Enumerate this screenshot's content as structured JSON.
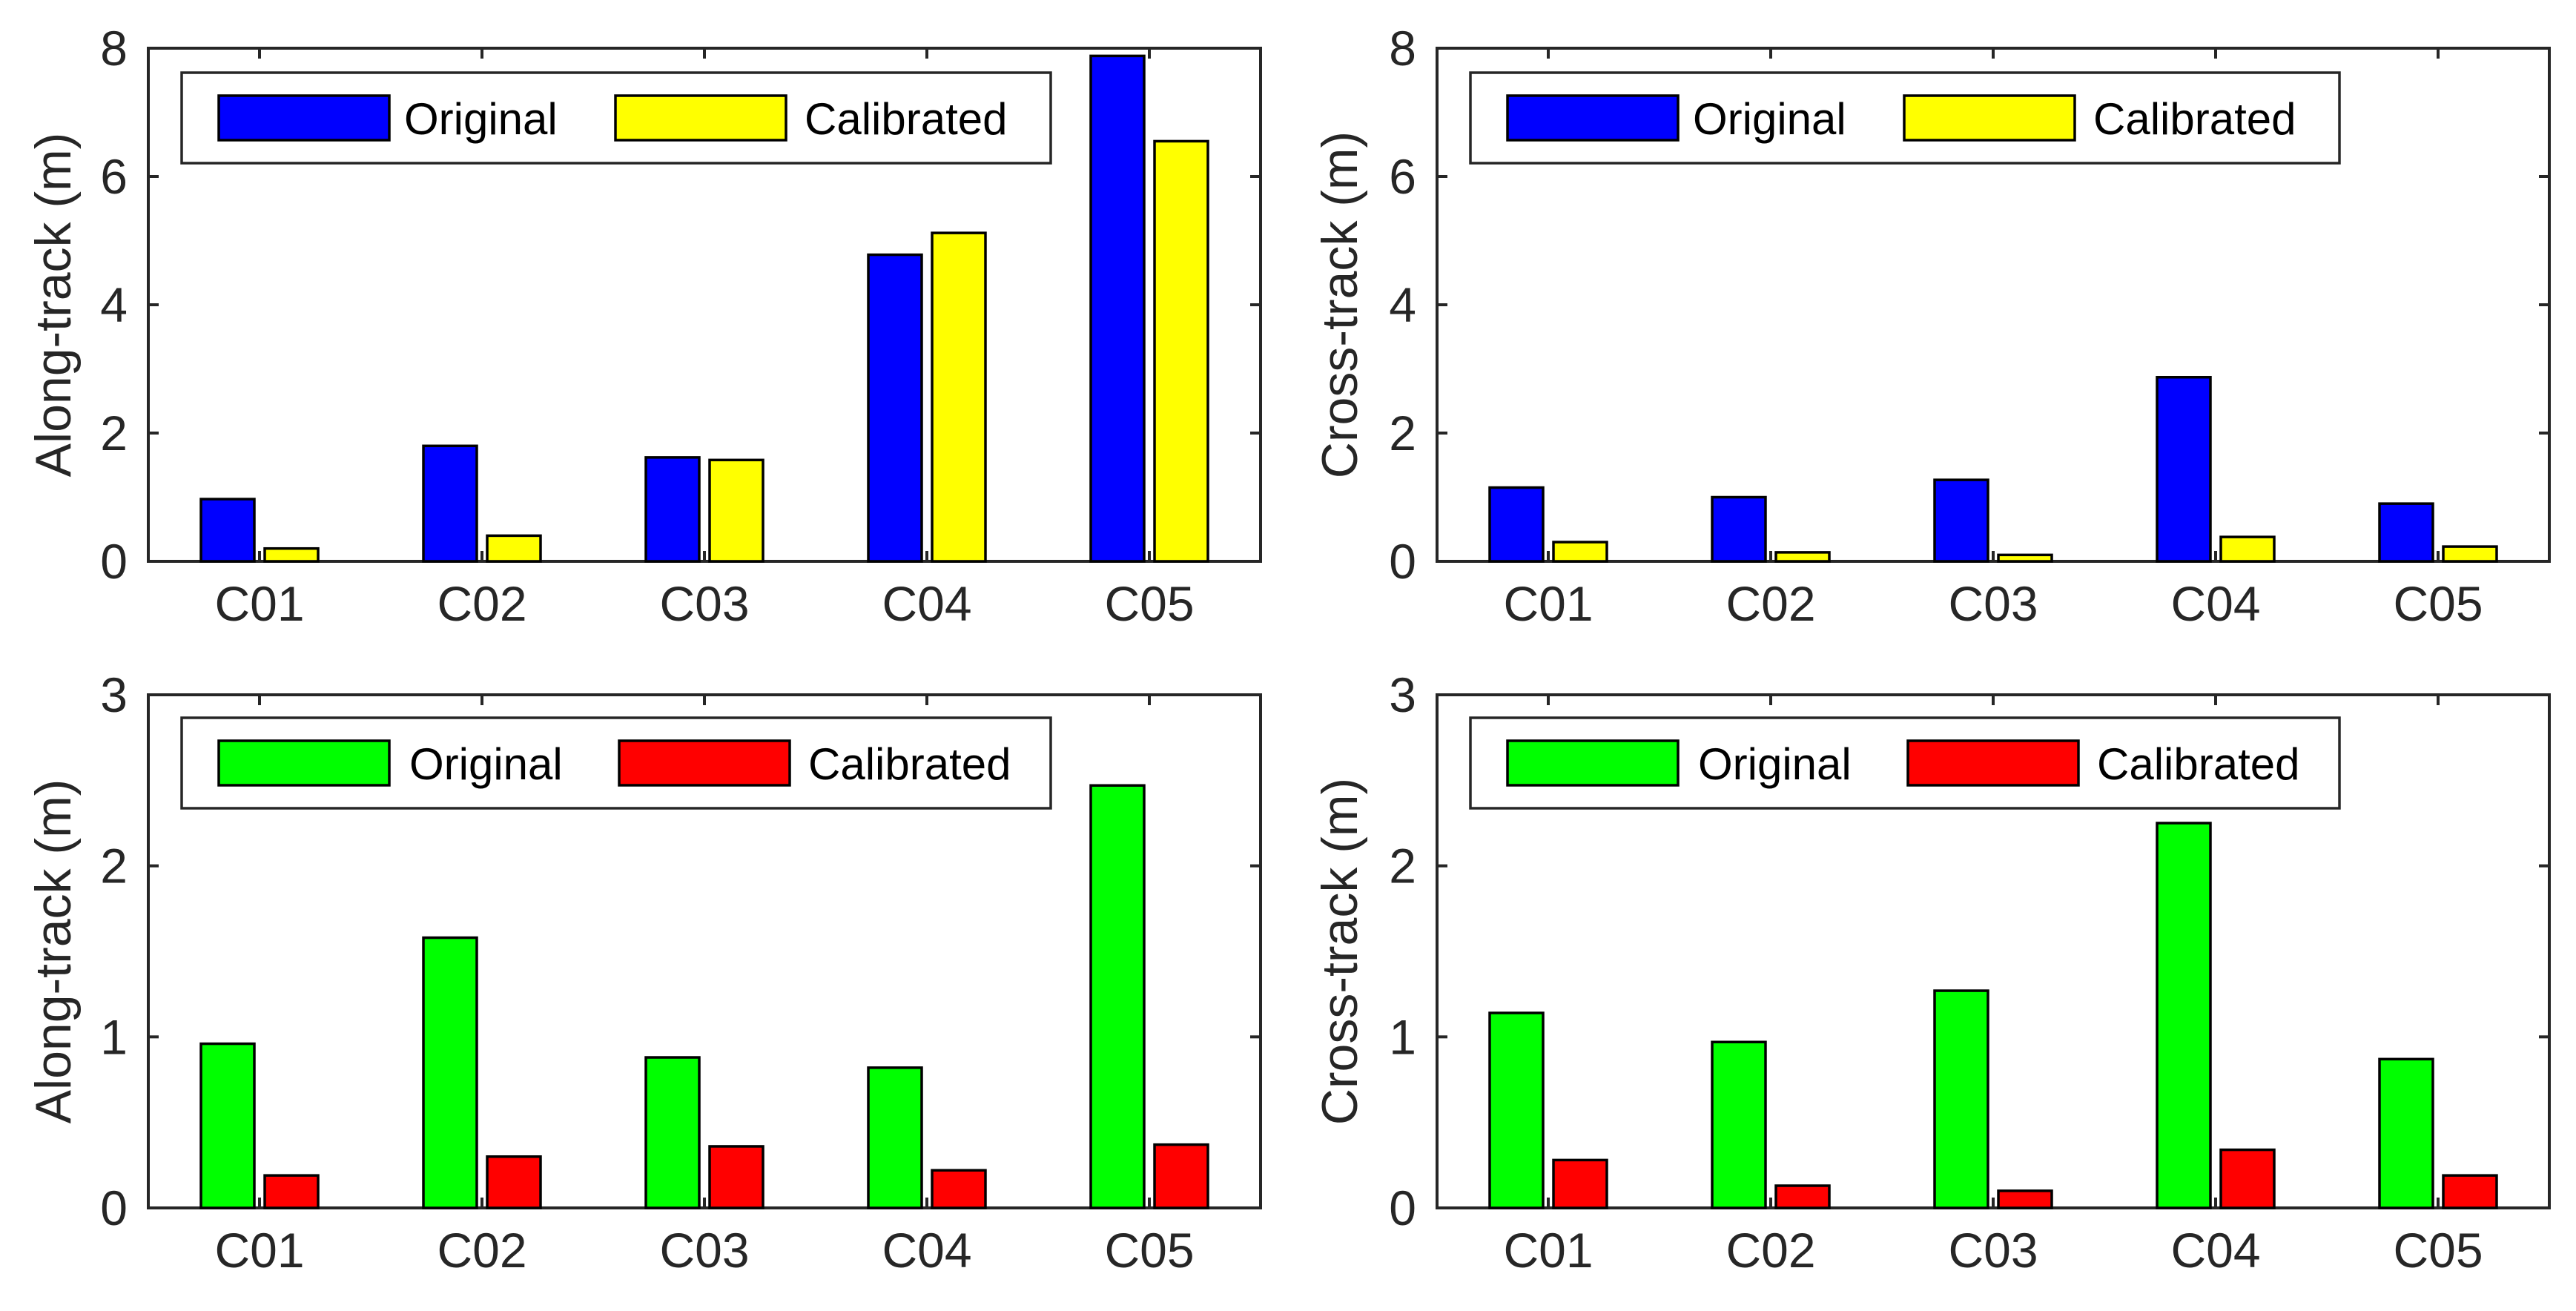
{
  "colors": {
    "original_top": "#0000ff",
    "calibrated_top": "#ffff00",
    "original_bottom": "#00ff00",
    "calibrated_bottom": "#ff0000",
    "axis": "#262626"
  },
  "chart_data": [
    {
      "type": "bar",
      "panel": "top-left",
      "categories": [
        "C01",
        "C02",
        "C03",
        "C04",
        "C05"
      ],
      "series": [
        {
          "name": "Original",
          "values": [
            0.97,
            1.8,
            1.62,
            4.78,
            7.88
          ]
        },
        {
          "name": "Calibrated",
          "values": [
            0.2,
            0.4,
            1.58,
            5.12,
            6.55
          ]
        }
      ],
      "title": "",
      "xlabel": "",
      "ylabel": "Along-track (m)",
      "ylim": [
        0,
        8
      ],
      "yticks": [
        "0",
        "2",
        "4",
        "6",
        "8"
      ],
      "legend": "top, horizontal",
      "grid": false
    },
    {
      "type": "bar",
      "panel": "top-right",
      "categories": [
        "C01",
        "C02",
        "C03",
        "C04",
        "C05"
      ],
      "series": [
        {
          "name": "Original",
          "values": [
            1.15,
            1.0,
            1.27,
            2.87,
            0.9
          ]
        },
        {
          "name": "Calibrated",
          "values": [
            0.3,
            0.14,
            0.1,
            0.38,
            0.23
          ]
        }
      ],
      "title": "",
      "xlabel": "",
      "ylabel": "Cross-track (m)",
      "ylim": [
        0,
        8
      ],
      "yticks": [
        "0",
        "2",
        "4",
        "6",
        "8"
      ],
      "legend": "top, horizontal",
      "grid": false
    },
    {
      "type": "bar",
      "panel": "bottom-left",
      "categories": [
        "C01",
        "C02",
        "C03",
        "C04",
        "C05"
      ],
      "series": [
        {
          "name": "Original",
          "values": [
            0.96,
            1.58,
            0.88,
            0.82,
            2.47
          ]
        },
        {
          "name": "Calibrated",
          "values": [
            0.19,
            0.3,
            0.36,
            0.22,
            0.37
          ]
        }
      ],
      "title": "",
      "xlabel": "",
      "ylabel": "Along-track (m)",
      "ylim": [
        0,
        3
      ],
      "yticks": [
        "0",
        "1",
        "2",
        "3"
      ],
      "legend": "top, horizontal",
      "grid": false
    },
    {
      "type": "bar",
      "panel": "bottom-right",
      "categories": [
        "C01",
        "C02",
        "C03",
        "C04",
        "C05"
      ],
      "series": [
        {
          "name": "Original",
          "values": [
            1.14,
            0.97,
            1.27,
            2.25,
            0.87
          ]
        },
        {
          "name": "Calibrated",
          "values": [
            0.28,
            0.13,
            0.1,
            0.34,
            0.19
          ]
        }
      ],
      "title": "",
      "xlabel": "",
      "ylabel": "Cross-track (m)",
      "ylim": [
        0,
        3
      ],
      "yticks": [
        "0",
        "1",
        "2",
        "3"
      ],
      "legend": "top, horizontal",
      "grid": false
    }
  ]
}
